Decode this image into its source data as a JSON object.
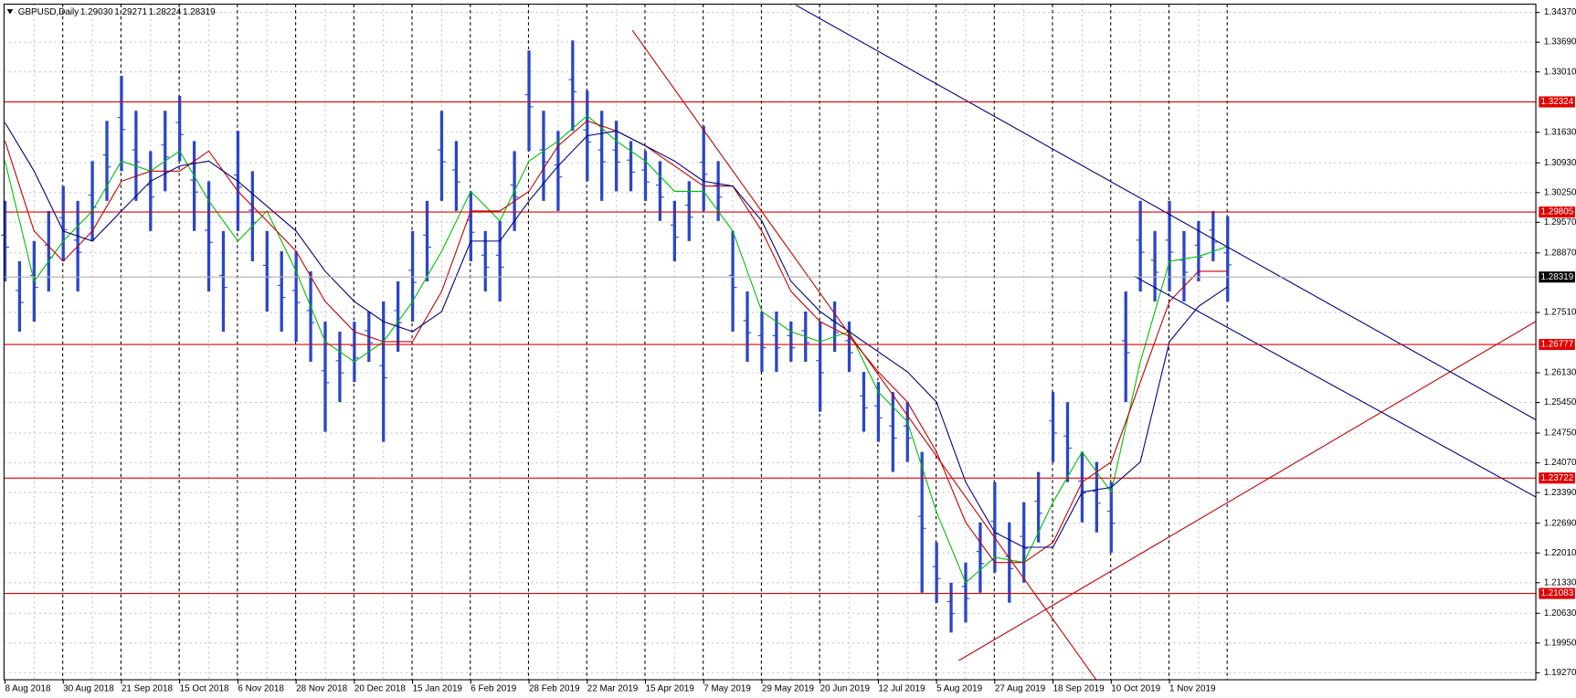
{
  "chart_data": {
    "type": "ohlc",
    "title": "GBPUSD,Daily",
    "quote": [
      {
        "value": 1.2903,
        "label": "1.29030"
      },
      {
        "value": 1.29271,
        "label": "1.29271"
      },
      {
        "value": 1.28224,
        "label": "1.28224"
      },
      {
        "value": 1.28319,
        "label": "1.28319"
      }
    ],
    "x_labels": [
      "8 Aug 2018",
      "30 Aug 2018",
      "21 Sep 2018",
      "15 Oct 2018",
      "6 Nov 2018",
      "28 Nov 2018",
      "20 Dec 2018",
      "15 Jan 2019",
      "6 Feb 2019",
      "28 Feb 2019",
      "22 Mar 2019",
      "15 Apr 2019",
      "7 May 2019",
      "29 May 2019",
      "20 Jun 2019",
      "12 Jul 2019",
      "5 Aug 2019",
      "27 Aug 2019",
      "18 Sep 2019",
      "10 Oct 2019",
      "1 Nov 2019"
    ],
    "ylim": [
      1.1911,
      1.3465
    ],
    "yticks": [
      {
        "value": 1.3437,
        "label": "1.34370"
      },
      {
        "value": 1.3369,
        "label": "1.33690"
      },
      {
        "value": 1.3301,
        "label": "1.33010"
      },
      {
        "value": 1.3163,
        "label": "1.31630"
      },
      {
        "value": 1.3093,
        "label": "1.30930"
      },
      {
        "value": 1.3025,
        "label": "1.30250"
      },
      {
        "value": 1.2957,
        "label": "1.29570"
      },
      {
        "value": 1.2887,
        "label": "1.28870"
      },
      {
        "value": 1.2751,
        "label": "1.27510"
      },
      {
        "value": 1.2613,
        "label": "1.26130"
      },
      {
        "value": 1.2545,
        "label": "1.25450"
      },
      {
        "value": 1.2475,
        "label": "1.24750"
      },
      {
        "value": 1.2407,
        "label": "1.24070"
      },
      {
        "value": 1.2339,
        "label": "1.23390"
      },
      {
        "value": 1.2269,
        "label": "1.22690"
      },
      {
        "value": 1.2201,
        "label": "1.22010"
      },
      {
        "value": 1.2133,
        "label": "1.21330"
      },
      {
        "value": 1.2063,
        "label": "1.20630"
      },
      {
        "value": 1.1995,
        "label": "1.19950"
      },
      {
        "value": 1.1927,
        "label": "1.19270"
      }
    ],
    "grid": true,
    "bars": {
      "color": "#2b46c8",
      "high": [
        1.3006,
        1.2868,
        1.2914,
        1.2983,
        1.304,
        1.3006,
        1.3097,
        1.3189,
        1.3292,
        1.3212,
        1.312,
        1.3212,
        1.3246,
        1.3143,
        1.3051,
        1.2937,
        1.3166,
        1.3074,
        1.2937,
        1.2891,
        1.2891,
        1.2845,
        1.273,
        1.2707,
        1.273,
        1.2753,
        1.2776,
        1.2822,
        1.2937,
        1.3006,
        1.3212,
        1.3143,
        1.3028,
        1.2937,
        1.296,
        1.312,
        1.335,
        1.3212,
        1.3166,
        1.3373,
        1.3258,
        1.3212,
        1.3189,
        1.3143,
        1.312,
        1.3097,
        1.3006,
        1.3051,
        1.3178,
        1.3097,
        1.2937,
        1.2799,
        1.2753,
        1.2753,
        1.273,
        1.2753,
        1.273,
        1.2776,
        1.273,
        1.2615,
        1.2592,
        1.2569,
        1.2546,
        1.2432,
        1.2225,
        1.2133,
        1.2179,
        1.2271,
        1.2363,
        1.2271,
        1.2317,
        1.2386,
        1.2569,
        1.2546,
        1.2432,
        1.2409,
        1.2363,
        1.2799,
        1.3006,
        1.2937,
        1.3006,
        1.2937,
        1.296,
        1.2983,
        1.2971
      ],
      "low": [
        1.2822,
        1.2707,
        1.273,
        1.2799,
        1.2868,
        1.2799,
        1.2914,
        1.3006,
        1.3074,
        1.3006,
        1.2937,
        1.3028,
        1.3097,
        1.2937,
        1.2799,
        1.2707,
        1.2937,
        1.2868,
        1.2753,
        1.2707,
        1.2684,
        1.2638,
        1.2478,
        1.2546,
        1.2592,
        1.2638,
        1.2455,
        1.2661,
        1.273,
        1.2822,
        1.3006,
        1.2983,
        1.2868,
        1.2799,
        1.2776,
        1.2937,
        1.312,
        1.3006,
        1.2983,
        1.3166,
        1.3051,
        1.3006,
        1.3028,
        1.3028,
        1.3006,
        1.296,
        1.2868,
        1.2914,
        1.2983,
        1.296,
        1.2707,
        1.2638,
        1.2615,
        1.2615,
        1.2638,
        1.2638,
        1.2524,
        1.2661,
        1.2615,
        1.2478,
        1.2455,
        1.2386,
        1.2409,
        1.211,
        1.2087,
        1.2019,
        1.2042,
        1.211,
        1.2156,
        1.2087,
        1.2133,
        1.2225,
        1.2409,
        1.2363,
        1.2271,
        1.2248,
        1.2202,
        1.2546,
        1.2799,
        1.2776,
        1.2799,
        1.2776,
        1.2822,
        1.2868,
        1.2776
      ]
    },
    "moving_averages": [
      {
        "color": "#00c000",
        "values": [
          1.3097,
          1.2822,
          1.2914,
          1.2983,
          1.3097,
          1.3074,
          1.312,
          1.3006,
          1.2914,
          1.2983,
          1.2845,
          1.2684,
          1.2638,
          1.2684,
          1.2776,
          1.2891,
          1.3028,
          1.296,
          1.3097,
          1.3143,
          1.3201,
          1.3143,
          1.3097,
          1.3028,
          1.3028,
          1.2937,
          1.2753,
          1.2707,
          1.2684,
          1.2707,
          1.2569,
          1.2501,
          1.2294,
          1.2133,
          1.2191,
          1.2179,
          1.2317,
          1.2432,
          1.234,
          1.2638,
          1.2868,
          1.2879,
          1.2902
        ]
      },
      {
        "color": "#c00000",
        "values": [
          1.3143,
          1.2937,
          1.2868,
          1.2937,
          1.3051,
          1.3074,
          1.3074,
          1.312,
          1.3028,
          1.296,
          1.2891,
          1.2776,
          1.2707,
          1.2684,
          1.2684,
          1.2799,
          1.2983,
          1.2983,
          1.3028,
          1.3132,
          1.3189,
          1.3166,
          1.3132,
          1.3086,
          1.304,
          1.304,
          1.2937,
          1.2799,
          1.273,
          1.2696,
          1.2615,
          1.2546,
          1.2432,
          1.2271,
          1.2179,
          1.2179,
          1.2225,
          1.2363,
          1.2409,
          1.2592,
          1.2776,
          1.2845,
          1.2845
        ]
      },
      {
        "color": "#000080",
        "values": [
          1.3185,
          1.3074,
          1.2937,
          1.2914,
          1.2983,
          1.3051,
          1.3086,
          1.3097,
          1.3051,
          1.2994,
          1.2937,
          1.2845,
          1.2776,
          1.273,
          1.2707,
          1.2753,
          1.2914,
          1.2914,
          1.3006,
          1.3086,
          1.3155,
          1.3166,
          1.3132,
          1.3097,
          1.3051,
          1.304,
          1.296,
          1.2822,
          1.2753,
          1.2707,
          1.2661,
          1.2615,
          1.2546,
          1.2363,
          1.2248,
          1.2214,
          1.2214,
          1.234,
          1.2351,
          1.2409,
          1.2684,
          1.2765,
          1.281
        ]
      }
    ],
    "levels": [
      {
        "value": 1.32324,
        "label": "1.32324"
      },
      {
        "value": 1.29805,
        "label": "1.29805"
      },
      {
        "value": 1.26777,
        "label": "1.26777"
      },
      {
        "value": 1.23722,
        "label": "1.23722"
      },
      {
        "value": 1.21083,
        "label": "1.21083"
      }
    ],
    "level_color": "#e00000",
    "current_price": {
      "value": 1.28319,
      "label": "1.28319"
    }
  }
}
